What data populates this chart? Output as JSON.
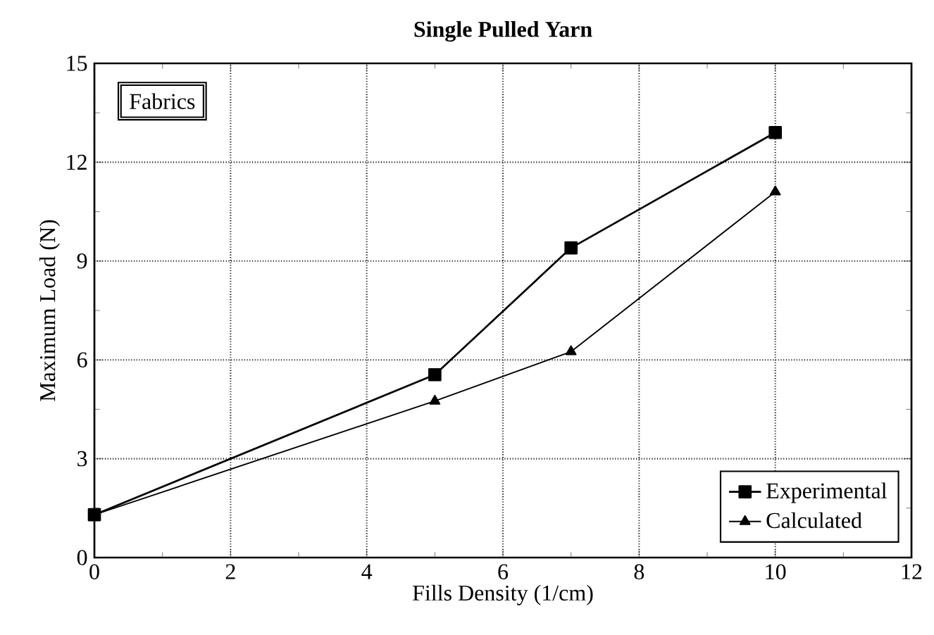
{
  "chart_data": {
    "type": "line",
    "title": "Single Pulled Yarn",
    "xlabel": "Fills Density  (1/cm)",
    "ylabel": "Maximum Load  (N)",
    "annotations": [
      "Fabrics"
    ],
    "xlim": [
      0,
      12
    ],
    "xticks": [
      0,
      2,
      4,
      6,
      8,
      10,
      12
    ],
    "ylim": [
      0,
      15
    ],
    "yticks": [
      0,
      3,
      6,
      9,
      12,
      15
    ],
    "grid": true,
    "legend": "bottom right",
    "series": [
      {
        "name": "Experimental",
        "color": "#000000",
        "marker": "square",
        "line_style": "solid",
        "x": [
          0,
          5,
          7,
          10
        ],
        "values": [
          1.3,
          5.55,
          9.4,
          12.9
        ]
      },
      {
        "name": "Calculated",
        "color": "#000000",
        "marker": "triangle",
        "line_style": "solid",
        "x": [
          0,
          5,
          7,
          10
        ],
        "values": [
          1.3,
          4.75,
          6.25,
          11.1
        ]
      }
    ]
  }
}
